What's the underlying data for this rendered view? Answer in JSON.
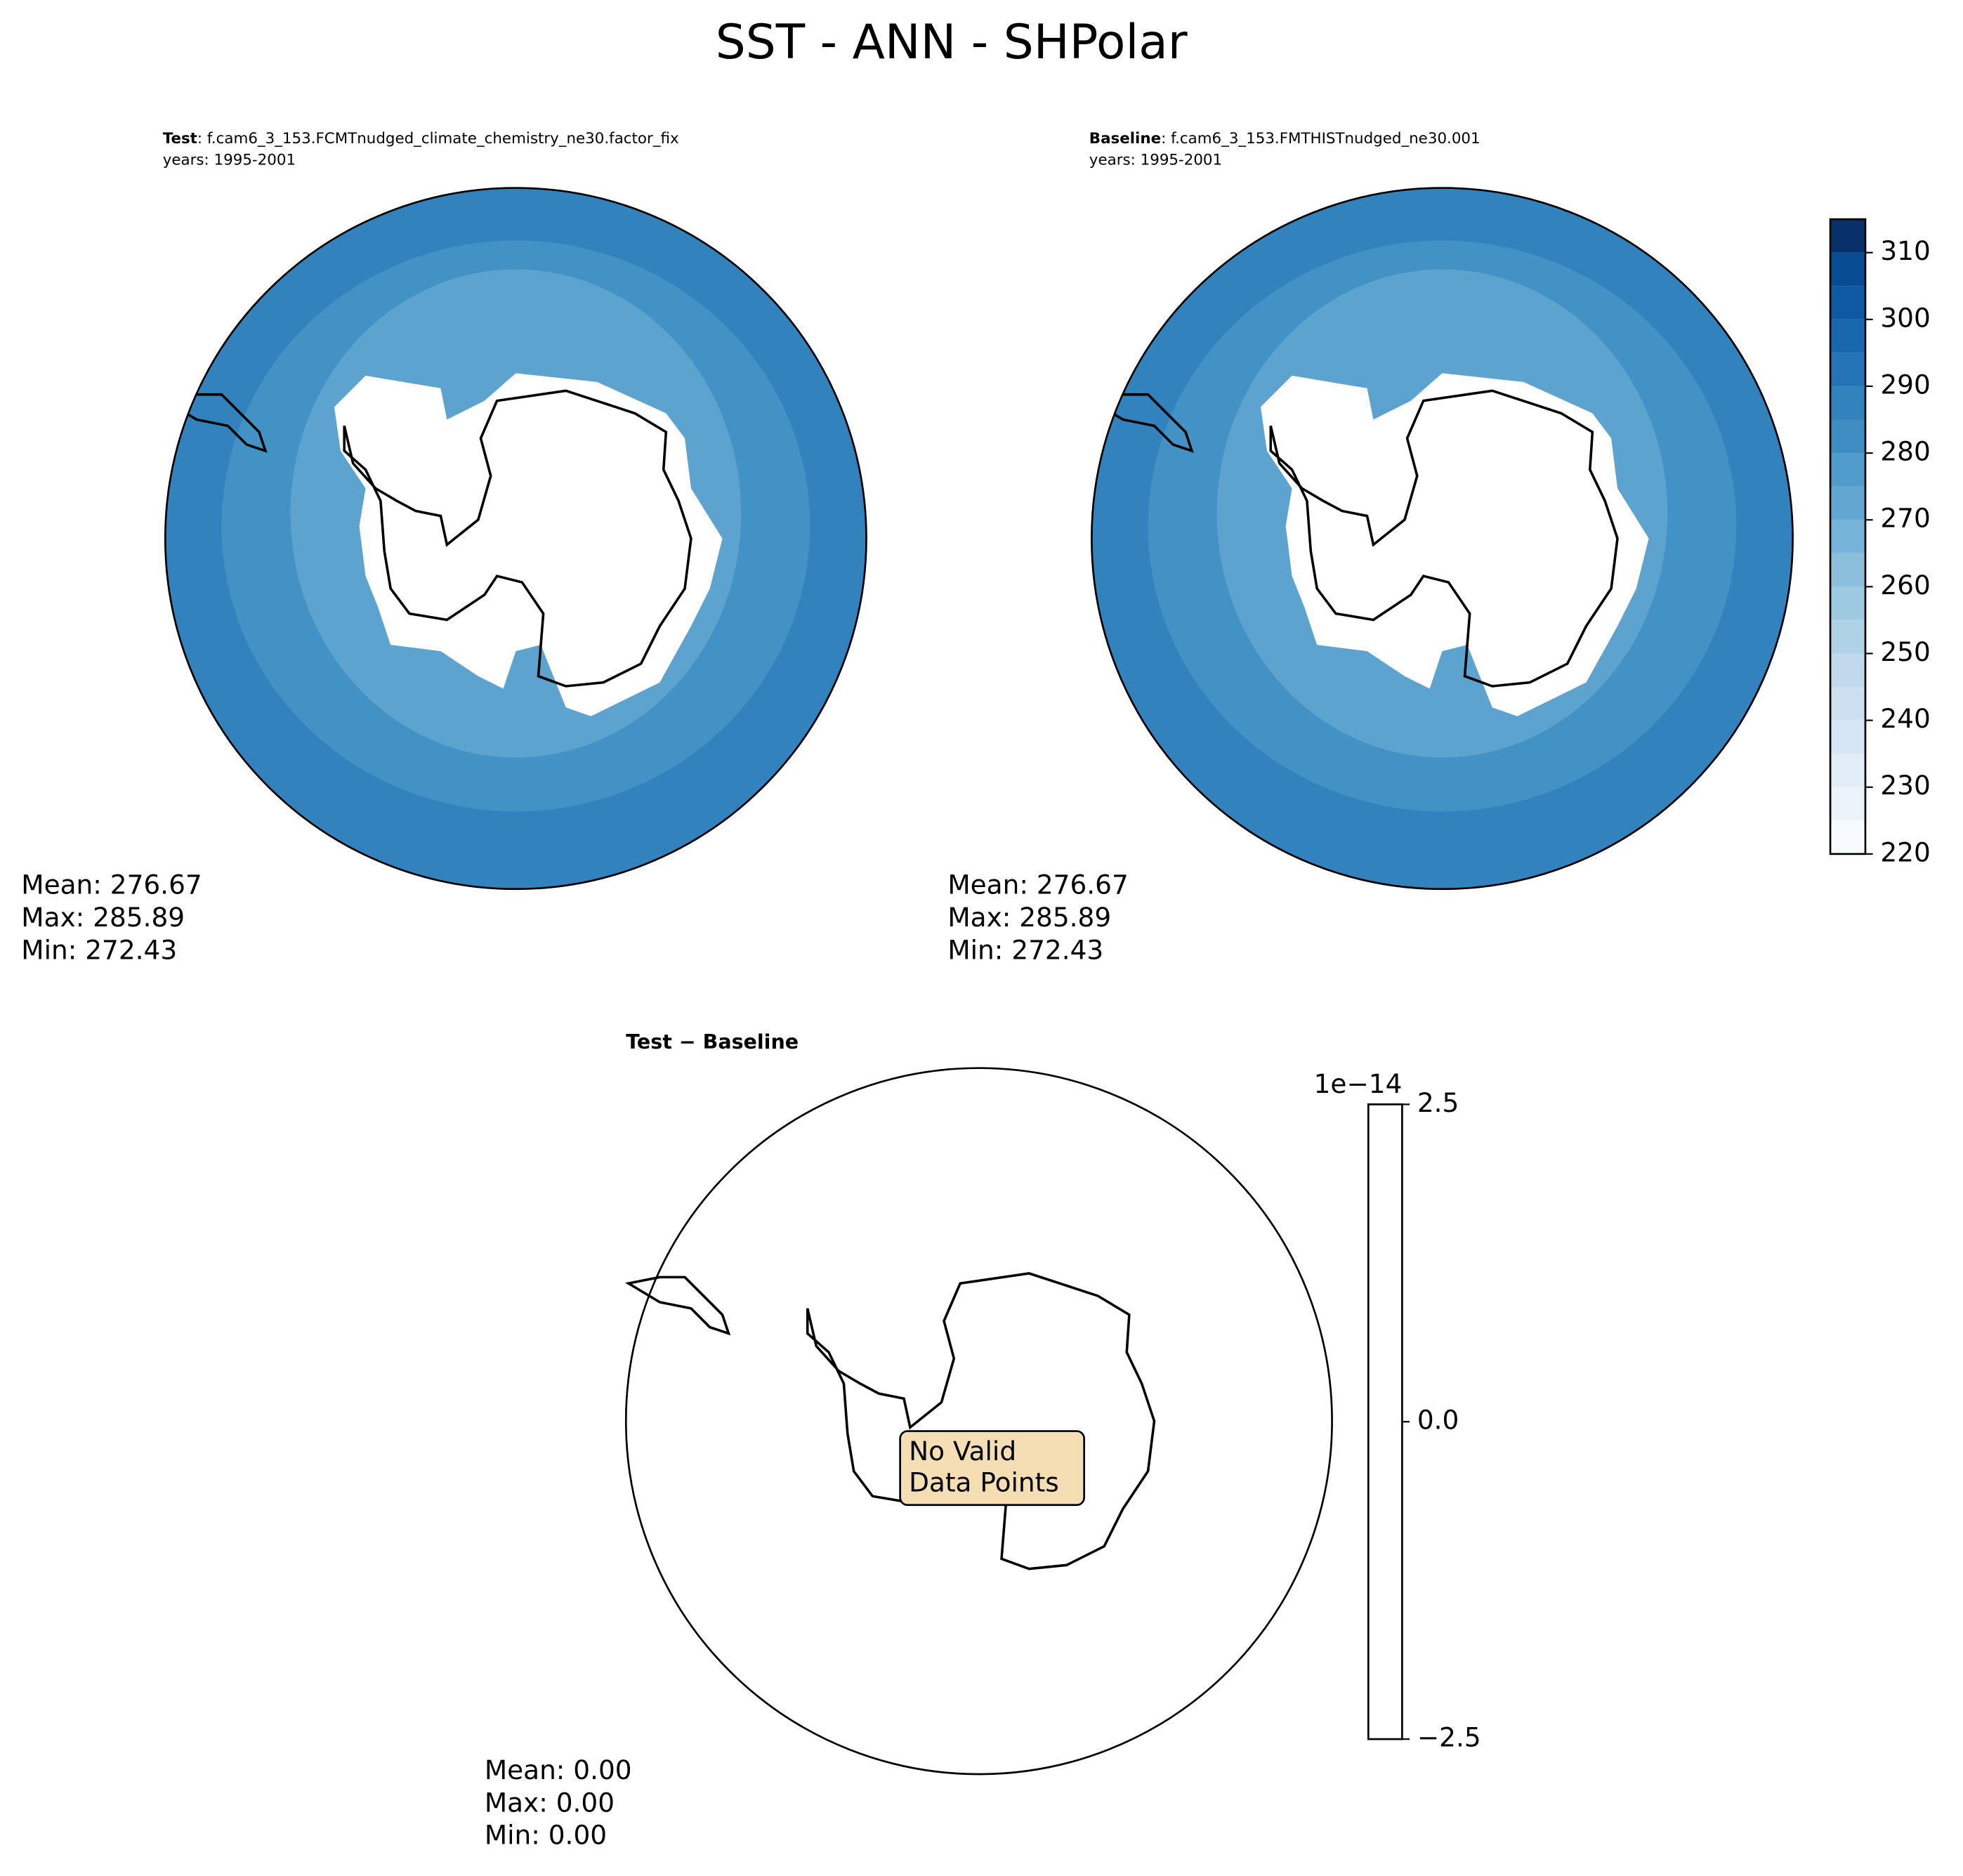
{
  "title": "SST - ANN - SHPolar",
  "chart_data": [
    {
      "type": "map",
      "label": "Test",
      "case": ": f.cam6_3_153.FCMTnudged_climate_chemistry_ne30.factor_fix",
      "years": "years: 1995-2001",
      "stats": [
        "Mean: 276.67",
        "Max: 285.89",
        "Min: 272.43"
      ]
    },
    {
      "type": "map",
      "label": "Baseline",
      "case": ": f.cam6_3_153.FMTHISTnudged_ne30.001",
      "years": "years: 1995-2001",
      "stats": [
        "Mean: 276.67",
        "Max: 285.89",
        "Min: 272.43"
      ],
      "colorbar": {
        "ylim": [
          220,
          315
        ],
        "yticks": [
          220,
          230,
          240,
          250,
          260,
          270,
          280,
          290,
          300,
          310
        ],
        "levels": [
          220,
          225,
          230,
          235,
          240,
          245,
          250,
          255,
          260,
          265,
          270,
          275,
          280,
          285,
          290,
          295,
          300,
          305,
          310,
          315
        ],
        "colors": [
          "#f7fbff",
          "#ecf4fb",
          "#e2edf8",
          "#d7e6f5",
          "#cde0f1",
          "#c1d9ed",
          "#b0d2e7",
          "#9ecae1",
          "#8bbfdc",
          "#75b4d8",
          "#61a7d2",
          "#4f9bcb",
          "#3e8ec4",
          "#3282be",
          "#2474b7",
          "#1967ad",
          "#0e5aa2",
          "#084c94",
          "#08306b"
        ]
      }
    },
    {
      "type": "map",
      "title": "Test − Baseline",
      "stats": [
        "Mean:  0.00",
        "Max:  0.00",
        "Min:  0.00"
      ],
      "note": "No Valid\nData Points",
      "colorbar": {
        "ylim": [
          -2.5,
          2.5
        ],
        "yticks": [
          {
            "value": -2.5,
            "label": "−2.5"
          },
          {
            "value": 0,
            "label": "0.0"
          },
          2.5
        ],
        "offset": "1e−14"
      }
    }
  ]
}
